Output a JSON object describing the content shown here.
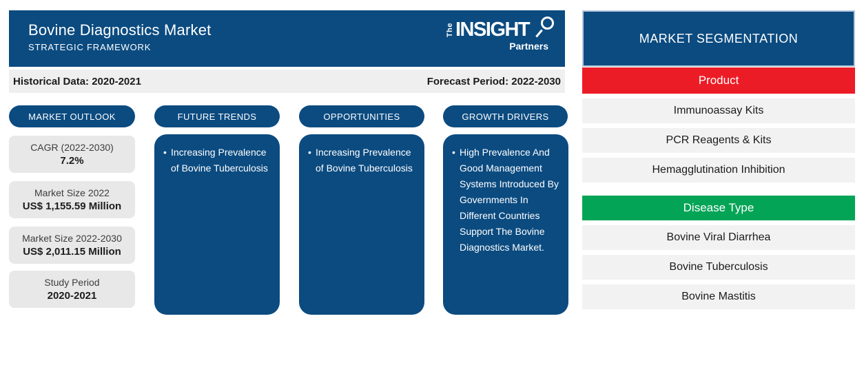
{
  "header": {
    "title": "Bovine Diagnostics Market",
    "subtitle": "STRATEGIC FRAMEWORK",
    "logo": {
      "the": "The",
      "insight": "INSIGHT",
      "partners": "Partners"
    }
  },
  "period_bar": {
    "historical": "Historical Data: 2020-2021",
    "forecast": "Forecast Period: 2022-2030"
  },
  "columns": {
    "market_outlook": {
      "label": "MARKET OUTLOOK",
      "stats": [
        {
          "label": "CAGR (2022-2030)",
          "value": "7.2%"
        },
        {
          "label": "Market Size 2022",
          "value": "US$ 1,155.59 Million"
        },
        {
          "label": "Market Size 2022-2030",
          "value": "US$ 2,011.15 Million"
        },
        {
          "label": "Study Period",
          "value": "2020-2021"
        }
      ]
    },
    "future_trends": {
      "label": "FUTURE TRENDS",
      "bullets": [
        "Increasing Prevalence of Bovine Tuberculosis"
      ]
    },
    "opportunities": {
      "label": "OPPORTUNITIES",
      "bullets": [
        "Increasing Prevalence of Bovine Tuberculosis"
      ]
    },
    "growth_drivers": {
      "label": "GROWTH DRIVERS",
      "bullets": [
        "High Prevalence And Good Management Systems Introduced By Governments In Different Countries Support The Bovine Diagnostics Market."
      ]
    }
  },
  "segmentation": {
    "title": "MARKET SEGMENTATION",
    "groups": [
      {
        "label": "Product",
        "color": "#EC1C26",
        "items": [
          "Immunoassay Kits",
          "PCR Reagents & Kits",
          "Hemagglutination Inhibition"
        ]
      },
      {
        "label": "Disease Type",
        "color": "#04A456",
        "items": [
          "Bovine Viral Diarrhea",
          "Bovine Tuberculosis",
          "Bovine Mastitis"
        ]
      }
    ]
  },
  "ui": {
    "bullet": "•",
    "colors": {
      "brand_blue": "#0B4B80",
      "product_red": "#EC1C26",
      "disease_green": "#04A456",
      "period_bar_gray": "#EFEFEF",
      "stat_box_gray": "#E8E8E8",
      "segment_row_gray": "#F2F2F2"
    }
  }
}
